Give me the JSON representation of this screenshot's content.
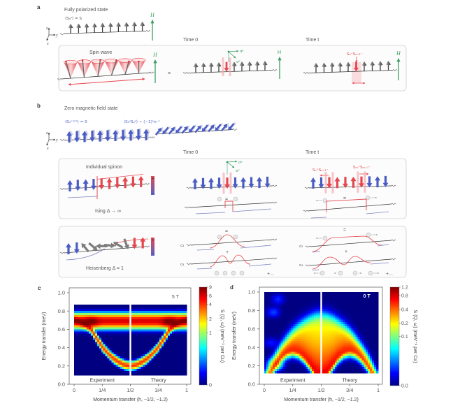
{
  "figure": {
    "panel_a": {
      "label": "a",
      "title": "Fully polarized state",
      "expectation": "⟨Sₙᶻ⟩ = S",
      "axis_z": "z",
      "axis_y": "y",
      "axis_x": "x",
      "field": "H",
      "box_title": "Spin wave",
      "equals": "=",
      "time0": "Time 0",
      "timet": "Time t",
      "sigma_y": "σʸ",
      "sigma_x": "σˣ",
      "operator_t": "Sₙ⁺Sₙ₊₁⁻"
    },
    "panel_b": {
      "label": "b",
      "title": "Zero magnetic field state",
      "expectation": "⟨Sₙˣ'ʸ'ᶻ⟩ = 0",
      "correlation": "⟨S₀ᶻSₙᶻ⟩ ~ (−1)ⁿn⁻¹",
      "axis_z": "z",
      "axis_y": "y",
      "axis_x": "x",
      "time0": "Time 0",
      "timet": "Time t",
      "box1_title": "Individual spinon",
      "box1_caption": "Ising Δ → ∞",
      "box2_caption": "Heisenberg Δ = 1",
      "sigma_y": "σʸ",
      "sigma_x": "σˣ",
      "operator_n": "Sₙ⁺Sₙ₊₁⁻",
      "operator_m": "Sₘ⁺Sₘ₊₁⁻",
      "equals": "=",
      "plus": "+",
      "ellipsis": "+...",
      "coef_2": "c₂",
      "coef_4": "c₄",
      "bar_plus": "+",
      "bar_minus": "−"
    },
    "panel_c": {
      "label": "c"
    },
    "panel_d": {
      "label": "d"
    }
  },
  "colors": {
    "blue": "#4a5cc4",
    "red": "#e5474f",
    "gray": "#7c7c7c",
    "green": "#3e9c62",
    "pink": "#f4a6ac",
    "ghost": "#cfd2e4"
  },
  "spin_wave": {
    "cones": 6,
    "precession_phase_deg": [
      200,
      250,
      300,
      350,
      40,
      90
    ]
  },
  "spin_chains": {
    "a_ground": [
      {
        "c": "gray",
        "deg": 0
      },
      {
        "c": "gray",
        "deg": 0
      },
      {
        "c": "gray",
        "deg": 0
      },
      {
        "c": "gray",
        "deg": 0
      },
      {
        "c": "gray",
        "deg": 0
      },
      {
        "c": "gray",
        "deg": 0
      },
      {
        "c": "gray",
        "deg": 0
      },
      {
        "c": "gray",
        "deg": 0
      },
      {
        "c": "gray",
        "deg": 0
      },
      {
        "c": "gray",
        "deg": 0
      }
    ],
    "a_time0": [
      {
        "c": "gray",
        "deg": 0
      },
      {
        "c": "gray",
        "deg": 0
      },
      {
        "c": "gray",
        "deg": 0
      },
      {
        "c": "gray",
        "deg": 0
      },
      {
        "c": "red",
        "deg": 180,
        "hl": true
      },
      {
        "c": "gray",
        "deg": 0
      },
      {
        "c": "gray",
        "deg": 0
      },
      {
        "c": "gray",
        "deg": 0
      },
      {
        "c": "gray",
        "deg": 0
      },
      {
        "c": "gray",
        "deg": 0
      }
    ],
    "a_timet": [
      {
        "c": "gray",
        "deg": 0
      },
      {
        "c": "gray",
        "deg": 0
      },
      {
        "c": "gray",
        "deg": 0
      },
      {
        "c": "gray",
        "deg": 0
      },
      {
        "c": "gray",
        "deg": 0
      },
      {
        "c": "red",
        "deg": 180
      },
      {
        "c": "gray",
        "deg": 0
      },
      {
        "c": "gray",
        "deg": 0
      },
      {
        "c": "gray",
        "deg": 0
      },
      {
        "c": "gray",
        "deg": 0
      }
    ],
    "b_neel": [
      {
        "c": "blue",
        "deg": 0
      },
      {
        "c": "blue",
        "deg": 180
      },
      {
        "c": "blue",
        "deg": 0
      },
      {
        "c": "blue",
        "deg": 180
      },
      {
        "c": "blue",
        "deg": 0
      },
      {
        "c": "blue",
        "deg": 180
      },
      {
        "c": "blue",
        "deg": 0
      },
      {
        "c": "blue",
        "deg": 180
      },
      {
        "c": "blue",
        "deg": 0
      },
      {
        "c": "blue",
        "deg": 180
      },
      {
        "c": "blue",
        "deg": 0
      }
    ],
    "b_tilt": [
      {
        "c": "blue",
        "deg": 40
      },
      {
        "c": "blue",
        "deg": 220
      },
      {
        "c": "blue",
        "deg": 40
      },
      {
        "c": "blue",
        "deg": 220
      },
      {
        "c": "blue",
        "deg": 40
      },
      {
        "c": "blue",
        "deg": 220
      },
      {
        "c": "blue",
        "deg": 40
      },
      {
        "c": "blue",
        "deg": 220
      },
      {
        "c": "blue",
        "deg": 40
      },
      {
        "c": "blue",
        "deg": 220
      },
      {
        "c": "blue",
        "deg": 40
      },
      {
        "c": "blue",
        "deg": 220
      }
    ],
    "b_ising": [
      {
        "c": "blue",
        "deg": 0
      },
      {
        "c": "blue",
        "deg": 180
      },
      {
        "c": "blue",
        "deg": 0
      },
      {
        "c": "blue",
        "deg": 180
      },
      {
        "c": "red",
        "deg": 180
      },
      {
        "c": "red",
        "deg": 0
      },
      {
        "c": "red",
        "deg": 180
      },
      {
        "c": "red",
        "deg": 0
      },
      {
        "c": "red",
        "deg": 180
      },
      {
        "c": "red",
        "deg": 0
      }
    ],
    "b_ising_t0": [
      {
        "c": "blue",
        "deg": 0
      },
      {
        "c": "blue",
        "deg": 180
      },
      {
        "c": "blue",
        "deg": 0
      },
      {
        "c": "blue",
        "deg": 180
      },
      {
        "c": "red",
        "deg": 180,
        "hl": true
      },
      {
        "c": "blue",
        "deg": 180
      },
      {
        "c": "blue",
        "deg": 0
      },
      {
        "c": "blue",
        "deg": 180
      },
      {
        "c": "blue",
        "deg": 0
      },
      {
        "c": "blue",
        "deg": 180
      }
    ],
    "b_ising_tt": [
      {
        "c": "blue",
        "deg": 0
      },
      {
        "c": "blue",
        "deg": 180
      },
      {
        "c": "red",
        "deg": 180,
        "hl": true
      },
      {
        "c": "red",
        "deg": 0
      },
      {
        "c": "red",
        "deg": 180
      },
      {
        "c": "red",
        "deg": 0
      },
      {
        "c": "red",
        "deg": 180,
        "hl": true
      },
      {
        "c": "blue",
        "deg": 180
      },
      {
        "c": "blue",
        "deg": 0
      },
      {
        "c": "blue",
        "deg": 180
      }
    ],
    "b_heis": [
      {
        "c": "blue",
        "deg": 0
      },
      {
        "c": "blue",
        "deg": 180
      },
      {
        "c": "gray",
        "deg": -40
      },
      {
        "c": "gray",
        "deg": 130
      },
      {
        "c": "gray",
        "deg": -90
      },
      {
        "c": "gray",
        "deg": 95
      },
      {
        "c": "gray",
        "deg": -60
      },
      {
        "c": "gray",
        "deg": 160
      },
      {
        "c": "red",
        "deg": 180
      },
      {
        "c": "red",
        "deg": 0
      }
    ]
  },
  "chart_data": [
    {
      "type": "heatmap",
      "panel": "c",
      "title": "",
      "annotation": "5 T",
      "xlabel": "Momentum transfer (h, −1/2, −1.2)",
      "ylabel": "Energy transfer (meV)",
      "xlim": [
        0,
        1
      ],
      "ylim": [
        0,
        1.0
      ],
      "xticks": [
        0,
        0.25,
        0.5,
        0.75,
        1
      ],
      "xtick_labels": [
        "0",
        "1/4",
        "1/2",
        "3/4",
        "1"
      ],
      "yticks": [
        0,
        0.2,
        0.4,
        0.6,
        0.8,
        1.0
      ],
      "ytick_labels": [
        "0.0",
        "0.2",
        "0.4",
        "0.6",
        "0.8",
        "1.0"
      ],
      "grid": false,
      "data_extent": {
        "h": [
          0,
          1
        ],
        "energy": [
          0.1,
          0.87
        ]
      },
      "divider_h": 0.5,
      "regions": [
        {
          "label": "Experiment",
          "h": [
            0,
            0.5
          ]
        },
        {
          "label": "Theory",
          "h": [
            0.5,
            1
          ]
        }
      ],
      "colorbar": {
        "label": "S (Q, ω) (meV⁻¹ per Cu)",
        "min": 0,
        "max": 9,
        "ticks": [
          0,
          1,
          2,
          4,
          6,
          9
        ],
        "tick_labels": [
          "0",
          "1",
          "2",
          "4",
          "6",
          "9"
        ],
        "scale": "log1p",
        "scale_factor": 10,
        "colormap": "jet",
        "placement": "right"
      },
      "modes": [
        {
          "name": "flat band",
          "h": [
            0,
            1
          ],
          "energy": [
            0.69,
            0.69
          ],
          "width": 0.04,
          "intensity": 6
        },
        {
          "name": "magnon",
          "h": [
            0,
            0.05,
            0.1,
            0.15,
            0.2,
            0.25,
            0.3,
            0.35,
            0.4,
            0.45,
            0.5,
            0.55,
            0.6,
            0.65,
            0.7,
            0.75,
            0.8,
            0.85,
            0.9,
            0.95,
            1
          ],
          "energy": [
            0.7,
            0.68,
            0.65,
            0.6,
            0.5,
            0.41,
            0.34,
            0.28,
            0.24,
            0.21,
            0.2,
            0.21,
            0.24,
            0.28,
            0.34,
            0.41,
            0.5,
            0.6,
            0.65,
            0.68,
            0.7
          ],
          "width": 0.022,
          "intensity": 4
        }
      ],
      "hotspots": [
        {
          "h": 0.15,
          "energy": 0.68,
          "intensity": 5
        },
        {
          "h": 0.85,
          "energy": 0.68,
          "intensity": 5
        }
      ]
    },
    {
      "type": "heatmap",
      "panel": "d",
      "title": "",
      "annotation": "0 T",
      "xlabel": "Momentum transfer (h, −1/2, −1.2)",
      "ylabel": "Energy transfer (meV)",
      "xlim": [
        0,
        1
      ],
      "ylim": [
        0,
        1.0
      ],
      "xticks": [
        0,
        0.25,
        0.5,
        0.75,
        1
      ],
      "xtick_labels": [
        "0",
        "1/4",
        "1/2",
        "3/4",
        "1"
      ],
      "yticks": [
        0,
        0.2,
        0.4,
        0.6,
        0.8,
        1.0
      ],
      "ytick_labels": [
        "0.0",
        "0.2",
        "0.4",
        "0.6",
        "0.8",
        "1.0"
      ],
      "grid": false,
      "data_extent": {
        "h": [
          0,
          1
        ],
        "energy": [
          0.12,
          1.0
        ]
      },
      "divider_h": 0.5,
      "regions": [
        {
          "label": "Experiment",
          "h": [
            0,
            0.5
          ]
        },
        {
          "label": "Theory",
          "h": [
            0.5,
            1
          ]
        }
      ],
      "colorbar": {
        "label": "S (Q, ω) (meV⁻¹ per Cu)",
        "min": 0,
        "max": 1.2,
        "ticks": [
          0,
          0.1,
          0.2,
          0.4,
          0.8,
          1.2
        ],
        "tick_labels": [
          "0.0",
          "0.1",
          "0.2",
          "0.4",
          "0.8",
          "1.2"
        ],
        "scale": "log1p",
        "scale_factor": 100,
        "colormap": "jet",
        "placement": "right"
      },
      "continuum": {
        "name": "two-spinon continuum",
        "h": [
          0,
          0.05,
          0.1,
          0.15,
          0.2,
          0.25,
          0.3,
          0.35,
          0.4,
          0.45,
          0.5,
          0.55,
          0.6,
          0.65,
          0.7,
          0.75,
          0.8,
          0.85,
          0.9,
          0.95,
          1
        ],
        "lower_boundary": [
          0,
          0.111,
          0.212,
          0.291,
          0.342,
          0.36,
          0.342,
          0.291,
          0.212,
          0.111,
          0,
          0.111,
          0.212,
          0.291,
          0.342,
          0.36,
          0.342,
          0.291,
          0.212,
          0.111,
          0
        ],
        "upper_boundary": [
          0,
          0.14,
          0.26,
          0.36,
          0.45,
          0.53,
          0.59,
          0.64,
          0.68,
          0.71,
          0.72,
          0.71,
          0.68,
          0.64,
          0.59,
          0.53,
          0.45,
          0.36,
          0.26,
          0.14,
          0
        ],
        "amplitude": 0.12
      },
      "features": [
        {
          "h": 0.1,
          "energy": 0.22,
          "intensity": 0.12
        },
        {
          "h": 0.08,
          "energy": 0.78,
          "intensity": 0.015
        },
        {
          "h": 0.12,
          "energy": 0.92,
          "intensity": 0.012
        },
        {
          "h": 0.06,
          "energy": 0.45,
          "intensity": 0.01
        }
      ]
    }
  ]
}
